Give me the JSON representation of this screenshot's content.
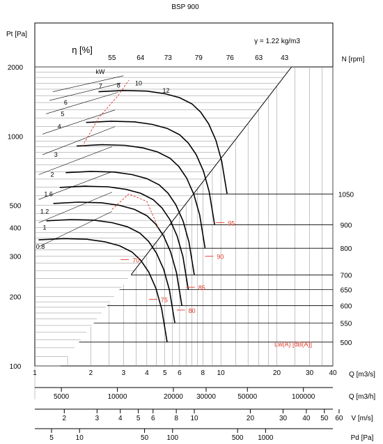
{
  "chart_data": {
    "type": "line",
    "title": "BSP 900",
    "density_label": "γ = 1.22 kg/m3",
    "eta_label": "η [%]",
    "kw_label": "kW",
    "ylabel": "Pt [Pa]",
    "rpm_label": "N [rpm]",
    "sound_label": "Lw(A) [dB(A)]",
    "log_scale": true,
    "grid": true,
    "y_ticks": [
      "2000",
      "1000",
      "500",
      "400",
      "300",
      "200",
      "100"
    ],
    "x_ticks": [
      "1",
      "2",
      "3",
      "4",
      "5",
      "6",
      "8",
      "10",
      "20",
      "30",
      "40"
    ],
    "x_label": "Q [m3/s]",
    "efficiency_labels": [
      "55",
      "64",
      "73",
      "79",
      "76",
      "63",
      "43"
    ],
    "power_labels": [
      "0.8",
      "1",
      "1.2",
      "1.6",
      "2",
      "3",
      "4",
      "5",
      "6",
      "7",
      "8",
      "10",
      "12"
    ],
    "speed_labels": [
      "1050",
      "900",
      "800",
      "700",
      "650",
      "600",
      "550",
      "500"
    ],
    "sound_levels": [
      "95",
      "90",
      "85",
      "80",
      "75",
      "70"
    ],
    "q_m3h_ticks": [
      "5000",
      "10000",
      "20000",
      "30000",
      "50000",
      "100000"
    ],
    "q_m3h_label": "Q [m3/h]",
    "v_ticks": [
      "2",
      "3",
      "4",
      "5",
      "6",
      "8",
      "10",
      "20",
      "30",
      "40",
      "50",
      "60"
    ],
    "v_label": "V [m/s]",
    "pd_ticks": [
      "5",
      "10",
      "50",
      "100",
      "500",
      "1000"
    ],
    "pd_label": "Pd [Pa]",
    "speeds_rpm": [
      500,
      550,
      600,
      650,
      700,
      800,
      900,
      1050
    ],
    "reference_curve_1050": {
      "q": [
        2.2,
        3.0,
        4.0,
        5.0,
        6.0,
        7.0,
        7.8,
        8.6,
        9.4,
        10.1,
        10.8
      ],
      "pt": [
        1560,
        1580,
        1570,
        1530,
        1470,
        1380,
        1270,
        1130,
        960,
        780,
        560
      ]
    },
    "red_lines": {
      "drop_a": {
        "label": "95",
        "label_speed": 1050,
        "label_at_q": 10.1
      },
      "drop_b": {
        "label": "90",
        "label_speed": 900,
        "label_at_q": 8.8
      }
    },
    "colors": {
      "curve": "#000000",
      "sound": "#e23a2a",
      "grid": "#8a8a8a"
    }
  }
}
